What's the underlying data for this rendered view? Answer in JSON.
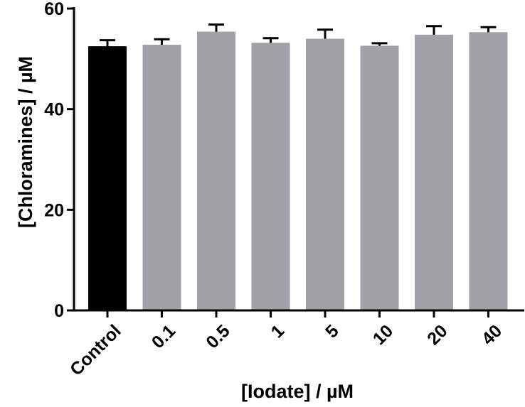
{
  "chart_data": {
    "type": "bar",
    "categories": [
      "Control",
      "0.1",
      "0.5",
      "1",
      "5",
      "10",
      "20",
      "40"
    ],
    "values": [
      52.5,
      52.8,
      55.4,
      53.2,
      54.0,
      52.6,
      54.8,
      55.3
    ],
    "errors": [
      1.2,
      1.1,
      1.4,
      0.9,
      1.8,
      0.5,
      1.7,
      1.0
    ],
    "bar_colors": [
      "#000000",
      "#a2a2a6",
      "#a2a2a6",
      "#a2a2a6",
      "#a2a2a6",
      "#a2a2a6",
      "#a2a2a6",
      "#a2a2a6"
    ],
    "xlabel": "[Iodate] / µM",
    "ylabel": "[Chloramines] / µM",
    "ylim": [
      0,
      60
    ],
    "yticks": [
      0,
      20,
      40,
      60
    ],
    "error_bars": "positive",
    "grid": false
  }
}
